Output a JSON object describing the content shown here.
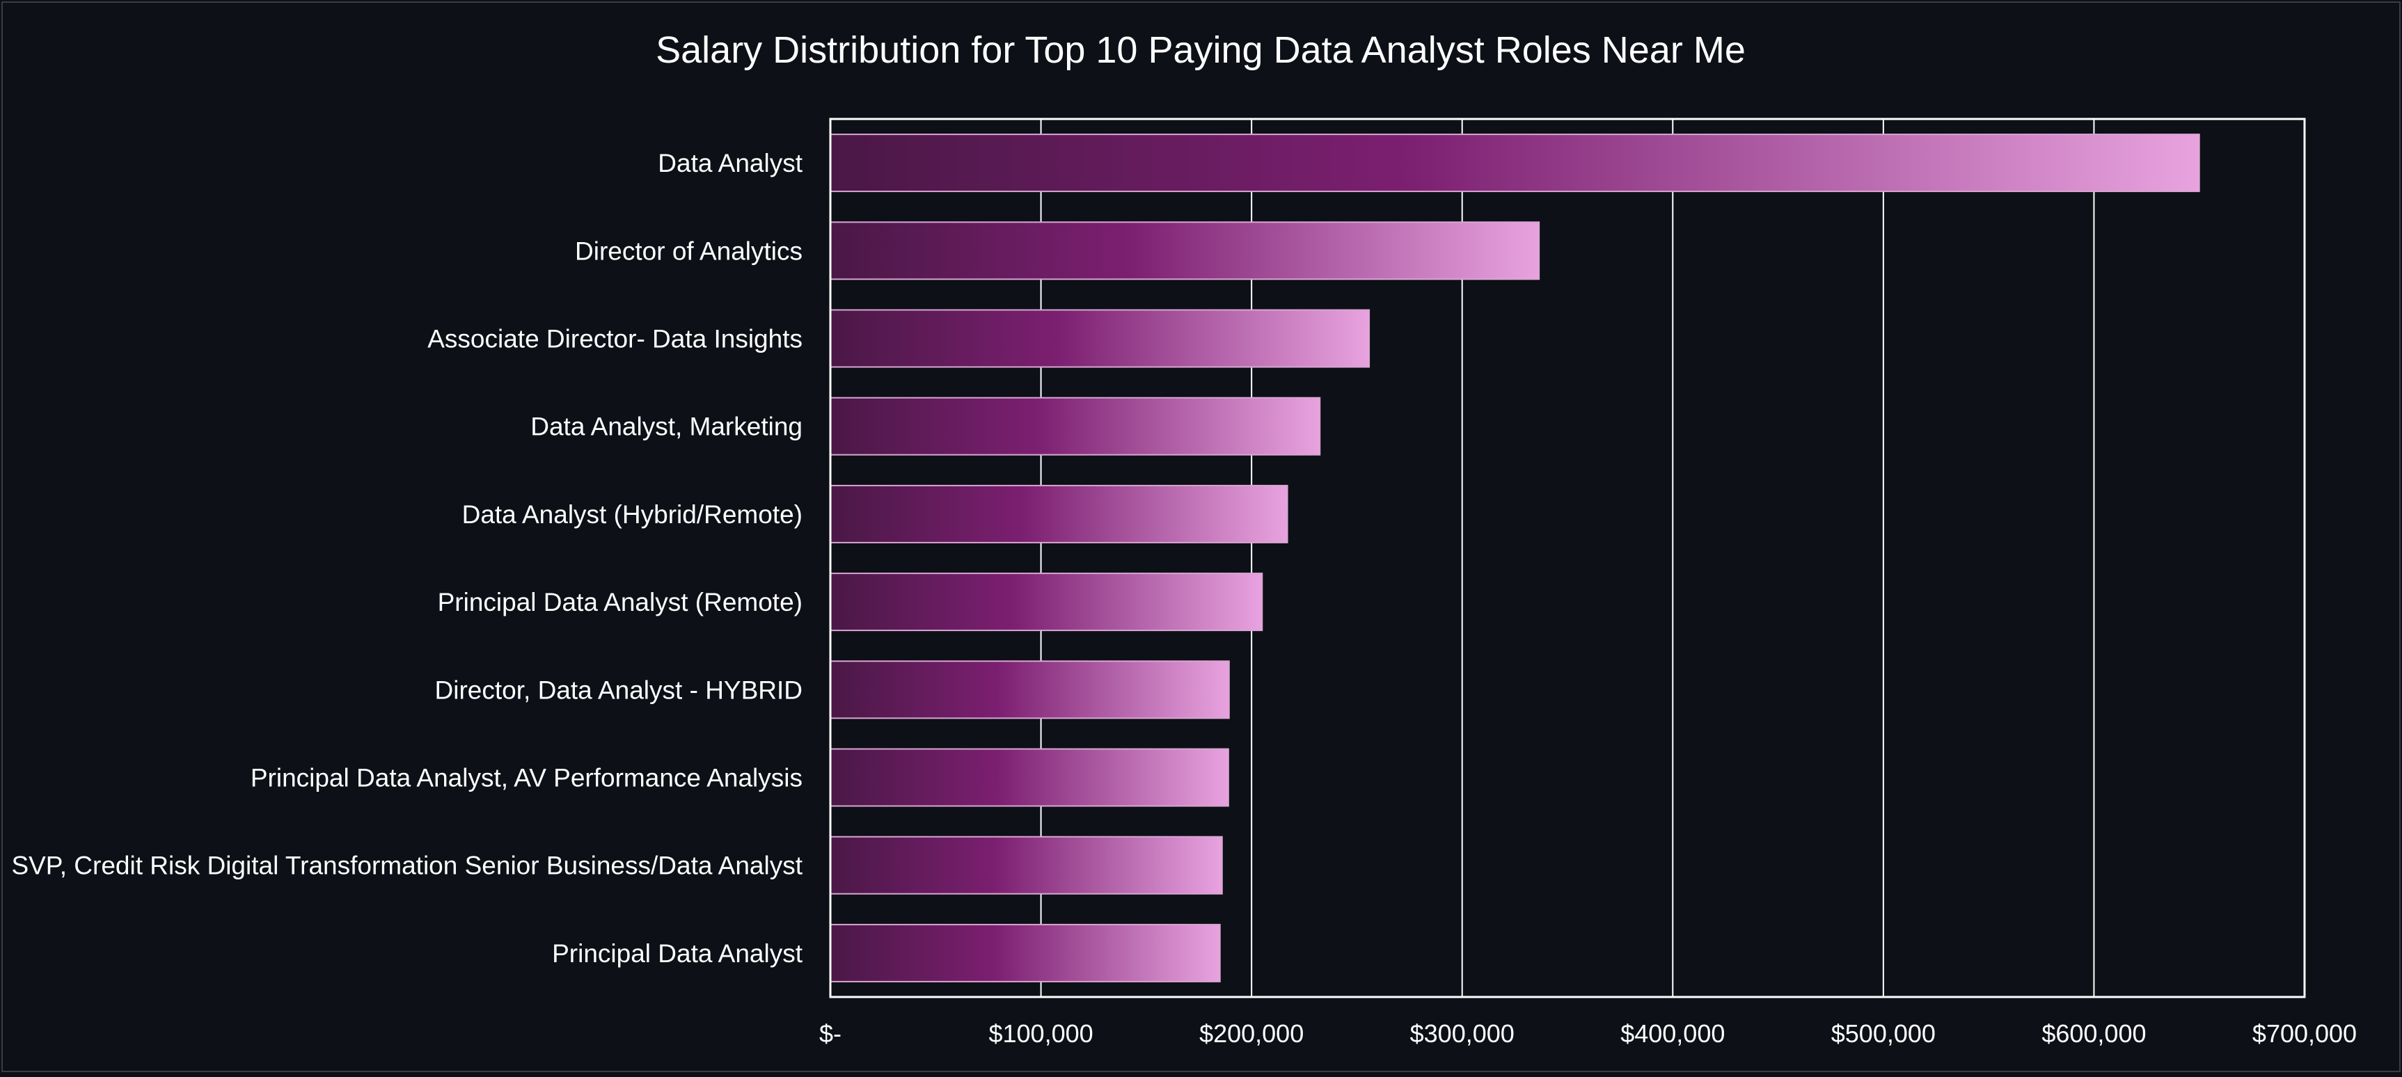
{
  "chart_data": {
    "type": "bar",
    "orientation": "horizontal",
    "title": "Salary Distribution for Top 10 Paying Data Analyst Roles Near Me",
    "xlabel": "",
    "ylabel": "",
    "categories": [
      "Data Analyst",
      "Director of Analytics",
      "Associate Director- Data Insights",
      "Data Analyst, Marketing",
      "Data Analyst (Hybrid/Remote)",
      "Principal Data Analyst (Remote)",
      "Director, Data Analyst - HYBRID",
      "Principal Data Analyst, AV Performance Analysis",
      "SVP, Credit Risk Digital Transformation Senior Business/Data Analyst",
      "Principal Data Analyst"
    ],
    "values": [
      650000,
      336500,
      255829,
      232423,
      217000,
      205000,
      189309,
      189000,
      186000,
      185000
    ],
    "xlim": [
      0,
      700000
    ],
    "x_ticks": [
      0,
      100000,
      200000,
      300000,
      400000,
      500000,
      600000,
      700000
    ],
    "x_tick_labels": [
      "$-",
      "$100,000",
      "$200,000",
      "$300,000",
      "$400,000",
      "$500,000",
      "$600,000",
      "$700,000"
    ],
    "grid": true,
    "legend": "none",
    "colors": {
      "background": "#0d1017",
      "plot_border": "#ffffff",
      "gridline": "#ffffff",
      "text": "#ffffff",
      "bar_dark": "#4a1846",
      "bar_mid": "#7b1f70",
      "bar_light": "#e8a3df",
      "bar_edge": "#d9a6d2"
    }
  }
}
